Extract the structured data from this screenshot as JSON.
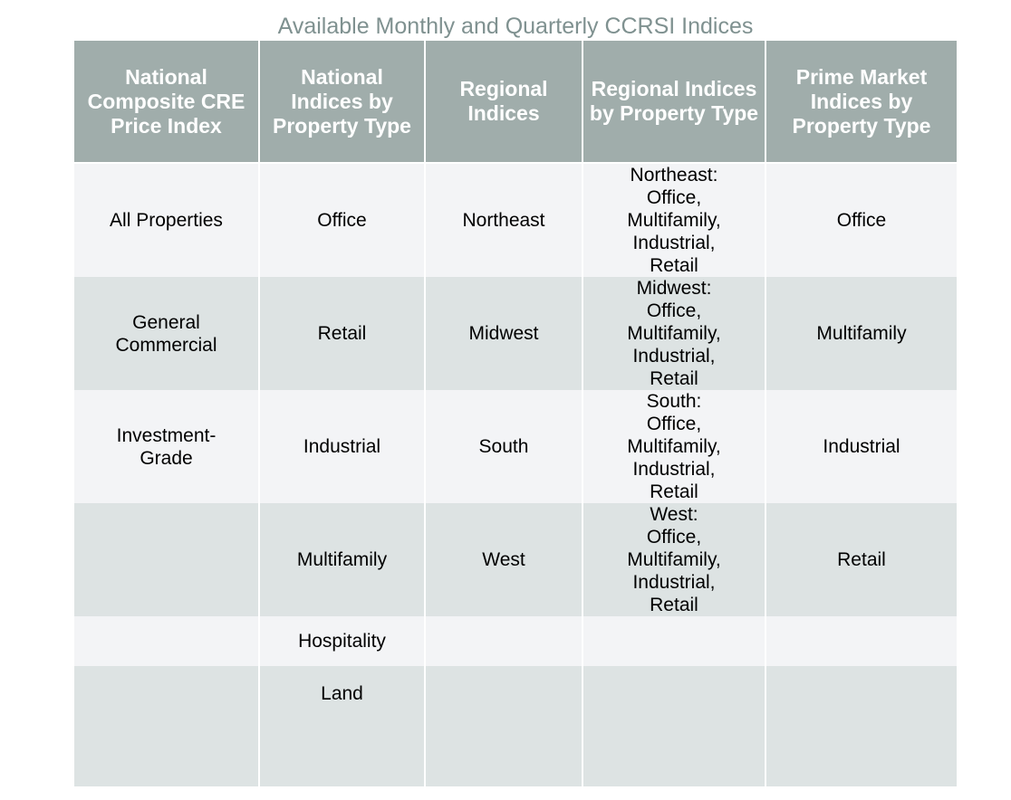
{
  "title": "Available Monthly and Quarterly CCRSI Indices",
  "headers": [
    "National Composite CRE Price Index",
    "National Indices by Property Type",
    "Regional Indices",
    "Regional Indices by Property Type",
    "Prime Market Indices by Property Type"
  ],
  "rows": [
    [
      "All Properties",
      "Office",
      "Northeast",
      "Northeast:\nOffice,\nMultifamily,\nIndustrial,\nRetail",
      "Office"
    ],
    [
      "General\nCommercial",
      "Retail",
      "Midwest",
      "Midwest:\nOffice,\nMultifamily,\nIndustrial,\nRetail",
      "Multifamily"
    ],
    [
      "Investment-\nGrade",
      "Industrial",
      "South",
      "South:\nOffice,\nMultifamily,\nIndustrial,\nRetail",
      "Industrial"
    ],
    [
      "",
      "Multifamily",
      "West",
      "West:\nOffice,\nMultifamily,\nIndustrial,\nRetail",
      "Retail"
    ],
    [
      "",
      "Hospitality",
      "",
      "",
      ""
    ],
    [
      "",
      "Land",
      "",
      "",
      ""
    ]
  ],
  "colors": {
    "header_bg": "#a0adab",
    "row_light": "#f3f4f6",
    "row_dark": "#dde3e3",
    "title": "#7f9190"
  }
}
